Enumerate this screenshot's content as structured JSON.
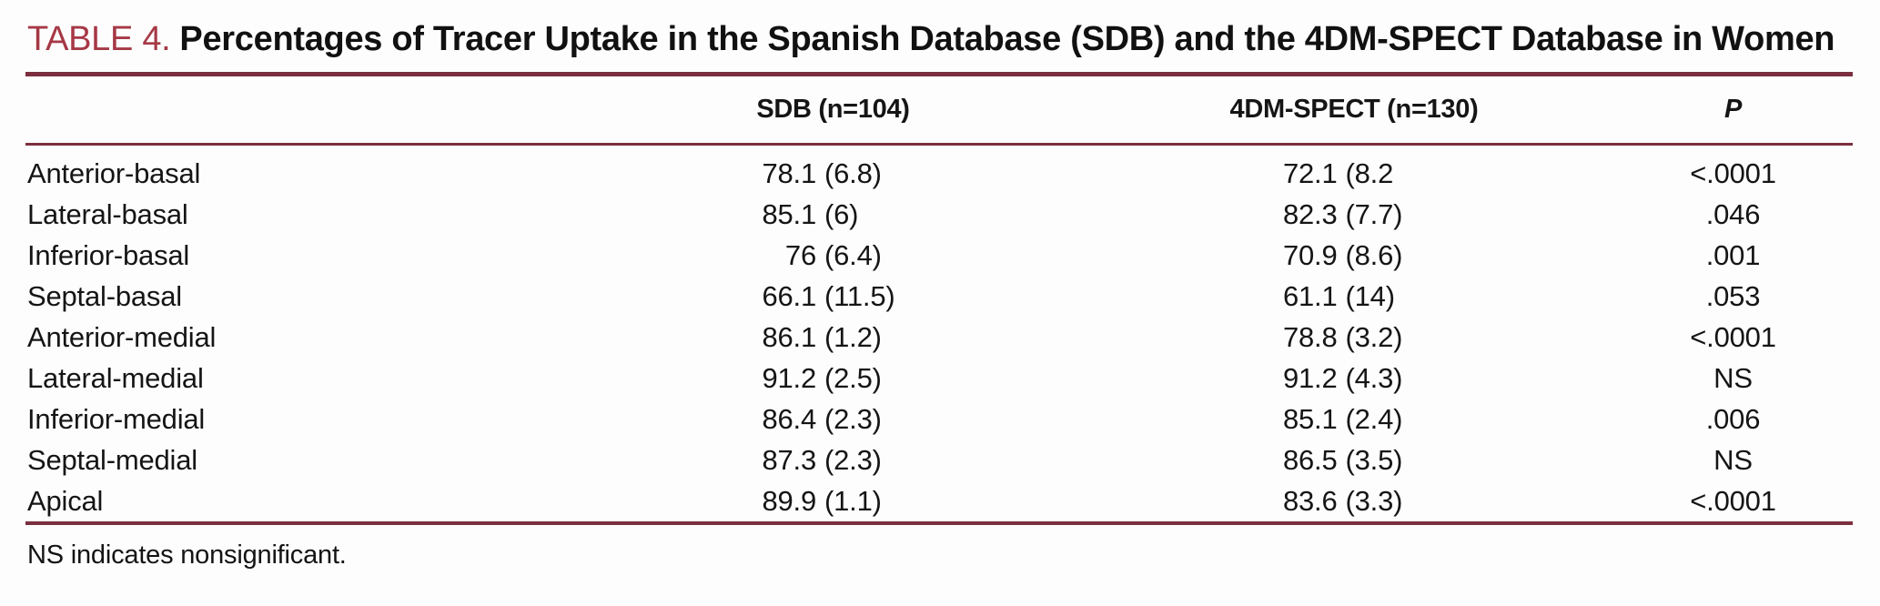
{
  "caption": {
    "label": "TABLE 4.",
    "title": "Percentages of Tracer Uptake in the Spanish Database (SDB) and the 4DM-SPECT Database in Women"
  },
  "columns": {
    "region": "",
    "sdb": "SDB (n=104)",
    "dm": "4DM-SPECT (n=130)",
    "p": "P"
  },
  "rows": [
    {
      "region": "Anterior-basal",
      "sdb": {
        "mean": "78.1",
        "sd": "(6.8)"
      },
      "dm": {
        "mean": "72.1",
        "sd": "(8.2"
      },
      "p": "<.0001"
    },
    {
      "region": "Lateral-basal",
      "sdb": {
        "mean": "85.1",
        "sd": "(6)"
      },
      "dm": {
        "mean": "82.3",
        "sd": "(7.7)"
      },
      "p": ".046"
    },
    {
      "region": "Inferior-basal",
      "sdb": {
        "mean": "76",
        "sd": "(6.4)"
      },
      "dm": {
        "mean": "70.9",
        "sd": "(8.6)"
      },
      "p": ".001"
    },
    {
      "region": "Septal-basal",
      "sdb": {
        "mean": "66.1",
        "sd": "(11.5)"
      },
      "dm": {
        "mean": "61.1",
        "sd": "(14)"
      },
      "p": ".053"
    },
    {
      "region": "Anterior-medial",
      "sdb": {
        "mean": "86.1",
        "sd": "(1.2)"
      },
      "dm": {
        "mean": "78.8",
        "sd": "(3.2)"
      },
      "p": "<.0001"
    },
    {
      "region": "Lateral-medial",
      "sdb": {
        "mean": "91.2",
        "sd": "(2.5)"
      },
      "dm": {
        "mean": "91.2",
        "sd": "(4.3)"
      },
      "p": "NS"
    },
    {
      "region": "Inferior-medial",
      "sdb": {
        "mean": "86.4",
        "sd": "(2.3)"
      },
      "dm": {
        "mean": "85.1",
        "sd": "(2.4)"
      },
      "p": ".006"
    },
    {
      "region": "Septal-medial",
      "sdb": {
        "mean": "87.3",
        "sd": "(2.3)"
      },
      "dm": {
        "mean": "86.5",
        "sd": "(3.5)"
      },
      "p": "NS"
    },
    {
      "region": "Apical",
      "sdb": {
        "mean": "89.9",
        "sd": "(1.1)"
      },
      "dm": {
        "mean": "83.6",
        "sd": "(3.3)"
      },
      "p": "<.0001"
    }
  ],
  "footnote": "NS indicates nonsignificant.",
  "colors": {
    "caption_red": "#A63845",
    "rule_maroon": "#7B2F3F",
    "text": "#151515"
  }
}
